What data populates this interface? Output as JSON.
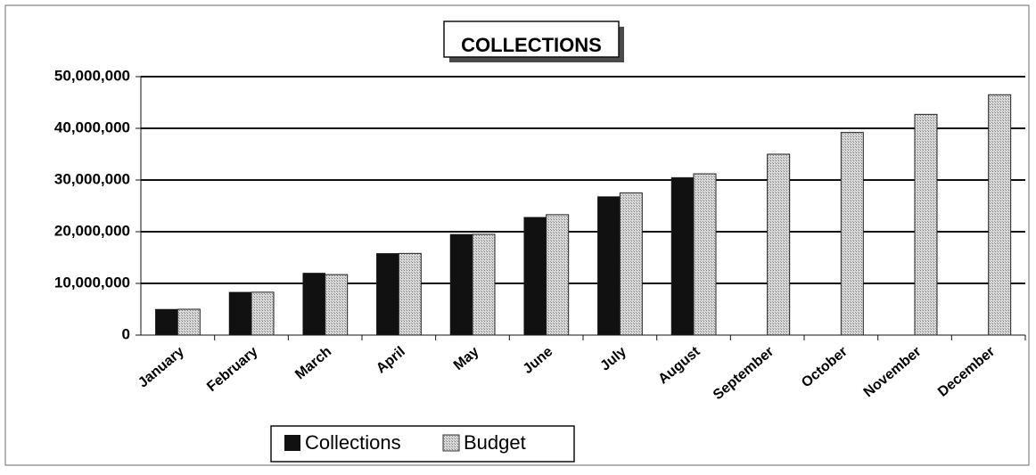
{
  "chart_data": {
    "type": "bar",
    "title": "COLLECTIONS",
    "categories": [
      "January",
      "February",
      "March",
      "April",
      "May",
      "June",
      "July",
      "August",
      "September",
      "October",
      "November",
      "December"
    ],
    "series": [
      {
        "name": "Collections",
        "values": [
          5000000,
          8300000,
          12000000,
          15800000,
          19500000,
          22800000,
          26800000,
          30500000,
          null,
          null,
          null,
          null
        ]
      },
      {
        "name": "Budget",
        "values": [
          5000000,
          8300000,
          11700000,
          15800000,
          19500000,
          23300000,
          27500000,
          31200000,
          35000000,
          39200000,
          42700000,
          46500000
        ]
      }
    ],
    "ylim": [
      0,
      50000000
    ],
    "yticks": [
      "0",
      "10,000,000",
      "20,000,000",
      "30,000,000",
      "40,000,000",
      "50,000,000"
    ],
    "grid": true,
    "legend": "bottom-center",
    "colors": {
      "Collections": "#111111",
      "Budget": "#bdbdbd"
    }
  }
}
